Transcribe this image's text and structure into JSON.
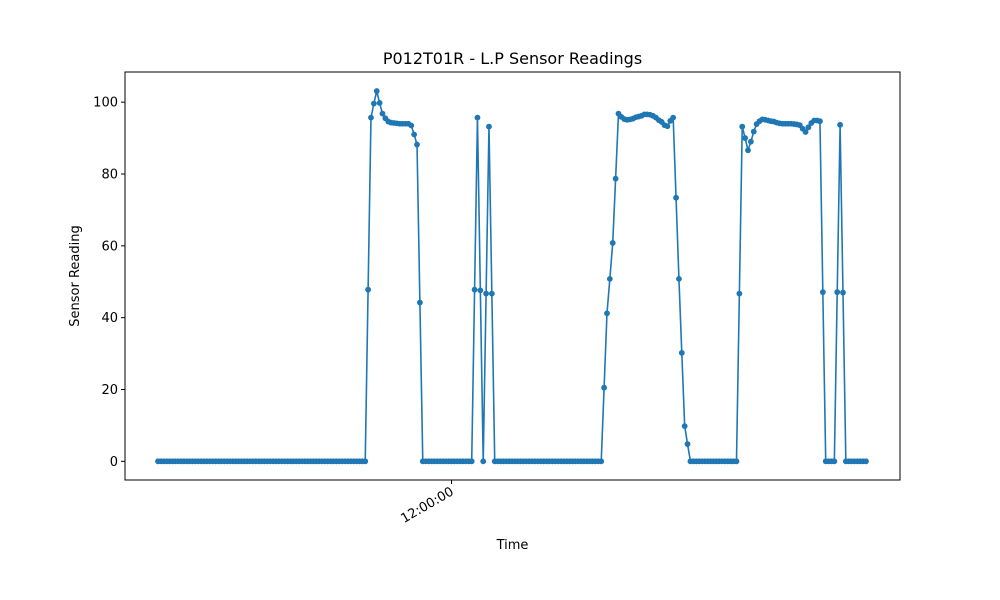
{
  "chart_data": {
    "type": "line",
    "title": "P012T01R - L.P Sensor Readings",
    "xlabel": "Time",
    "ylabel": "Sensor Reading",
    "ylim": [
      -5.2,
      108.4
    ],
    "yticks": [
      0,
      20,
      40,
      60,
      80,
      100
    ],
    "x_tick_labels": [
      "12:00:00"
    ],
    "x_tick_index": 102,
    "grid": false,
    "legend": "none",
    "marker": "circle",
    "colors": {
      "series": "#1f77b4"
    },
    "series": [
      {
        "values": [
          0,
          0,
          0,
          0,
          0,
          0,
          0,
          0,
          0,
          0,
          0,
          0,
          0,
          0,
          0,
          0,
          0,
          0,
          0,
          0,
          0,
          0,
          0,
          0,
          0,
          0,
          0,
          0,
          0,
          0,
          0,
          0,
          0,
          0,
          0,
          0,
          0,
          0,
          0,
          0,
          0,
          0,
          0,
          0,
          0,
          0,
          0,
          0,
          0,
          0,
          0,
          0,
          0,
          0,
          0,
          0,
          0,
          0,
          0,
          0,
          0,
          0,
          0,
          0,
          0,
          0,
          0,
          0,
          0,
          0,
          0,
          0,
          0,
          47.8,
          95.7,
          99.6,
          103.1,
          99.8,
          96.8,
          95.5,
          94.6,
          94.3,
          94.2,
          94.1,
          94.0,
          94.0,
          94.0,
          94.0,
          93.5,
          91.0,
          88.2,
          44.2,
          0,
          0,
          0,
          0,
          0,
          0,
          0,
          0,
          0,
          0,
          0,
          0,
          0,
          0,
          0,
          0,
          0,
          0,
          47.8,
          95.7,
          47.6,
          0,
          46.7,
          93.2,
          46.7,
          0,
          0,
          0,
          0,
          0,
          0,
          0,
          0,
          0,
          0,
          0,
          0,
          0,
          0,
          0,
          0,
          0,
          0,
          0,
          0,
          0,
          0,
          0,
          0,
          0,
          0,
          0,
          0,
          0,
          0,
          0,
          0,
          0,
          0,
          0,
          0,
          0,
          0,
          20.5,
          41.2,
          50.8,
          60.8,
          78.7,
          96.8,
          95.9,
          95.3,
          95.1,
          95.2,
          95.4,
          95.8,
          96.0,
          96.2,
          96.6,
          96.6,
          96.5,
          96.2,
          95.7,
          95.0,
          94.5,
          93.6,
          93.3,
          94.8,
          95.7,
          73.4,
          50.8,
          30.2,
          9.8,
          4.8,
          0,
          0,
          0,
          0,
          0,
          0,
          0,
          0,
          0,
          0,
          0,
          0,
          0,
          0,
          0,
          0,
          0,
          46.7,
          93.2,
          90.0,
          86.6,
          89.0,
          91.8,
          93.9,
          94.7,
          95.2,
          95.1,
          94.9,
          94.7,
          94.6,
          94.3,
          94.1,
          94.0,
          94.0,
          94.0,
          94.0,
          93.9,
          93.8,
          93.6,
          92.6,
          91.7,
          93.0,
          94.2,
          94.9,
          94.9,
          94.7,
          47.1,
          0,
          0,
          0,
          0,
          47.1,
          93.7,
          47.0,
          0,
          0,
          0,
          0,
          0,
          0,
          0,
          0
        ]
      }
    ]
  }
}
